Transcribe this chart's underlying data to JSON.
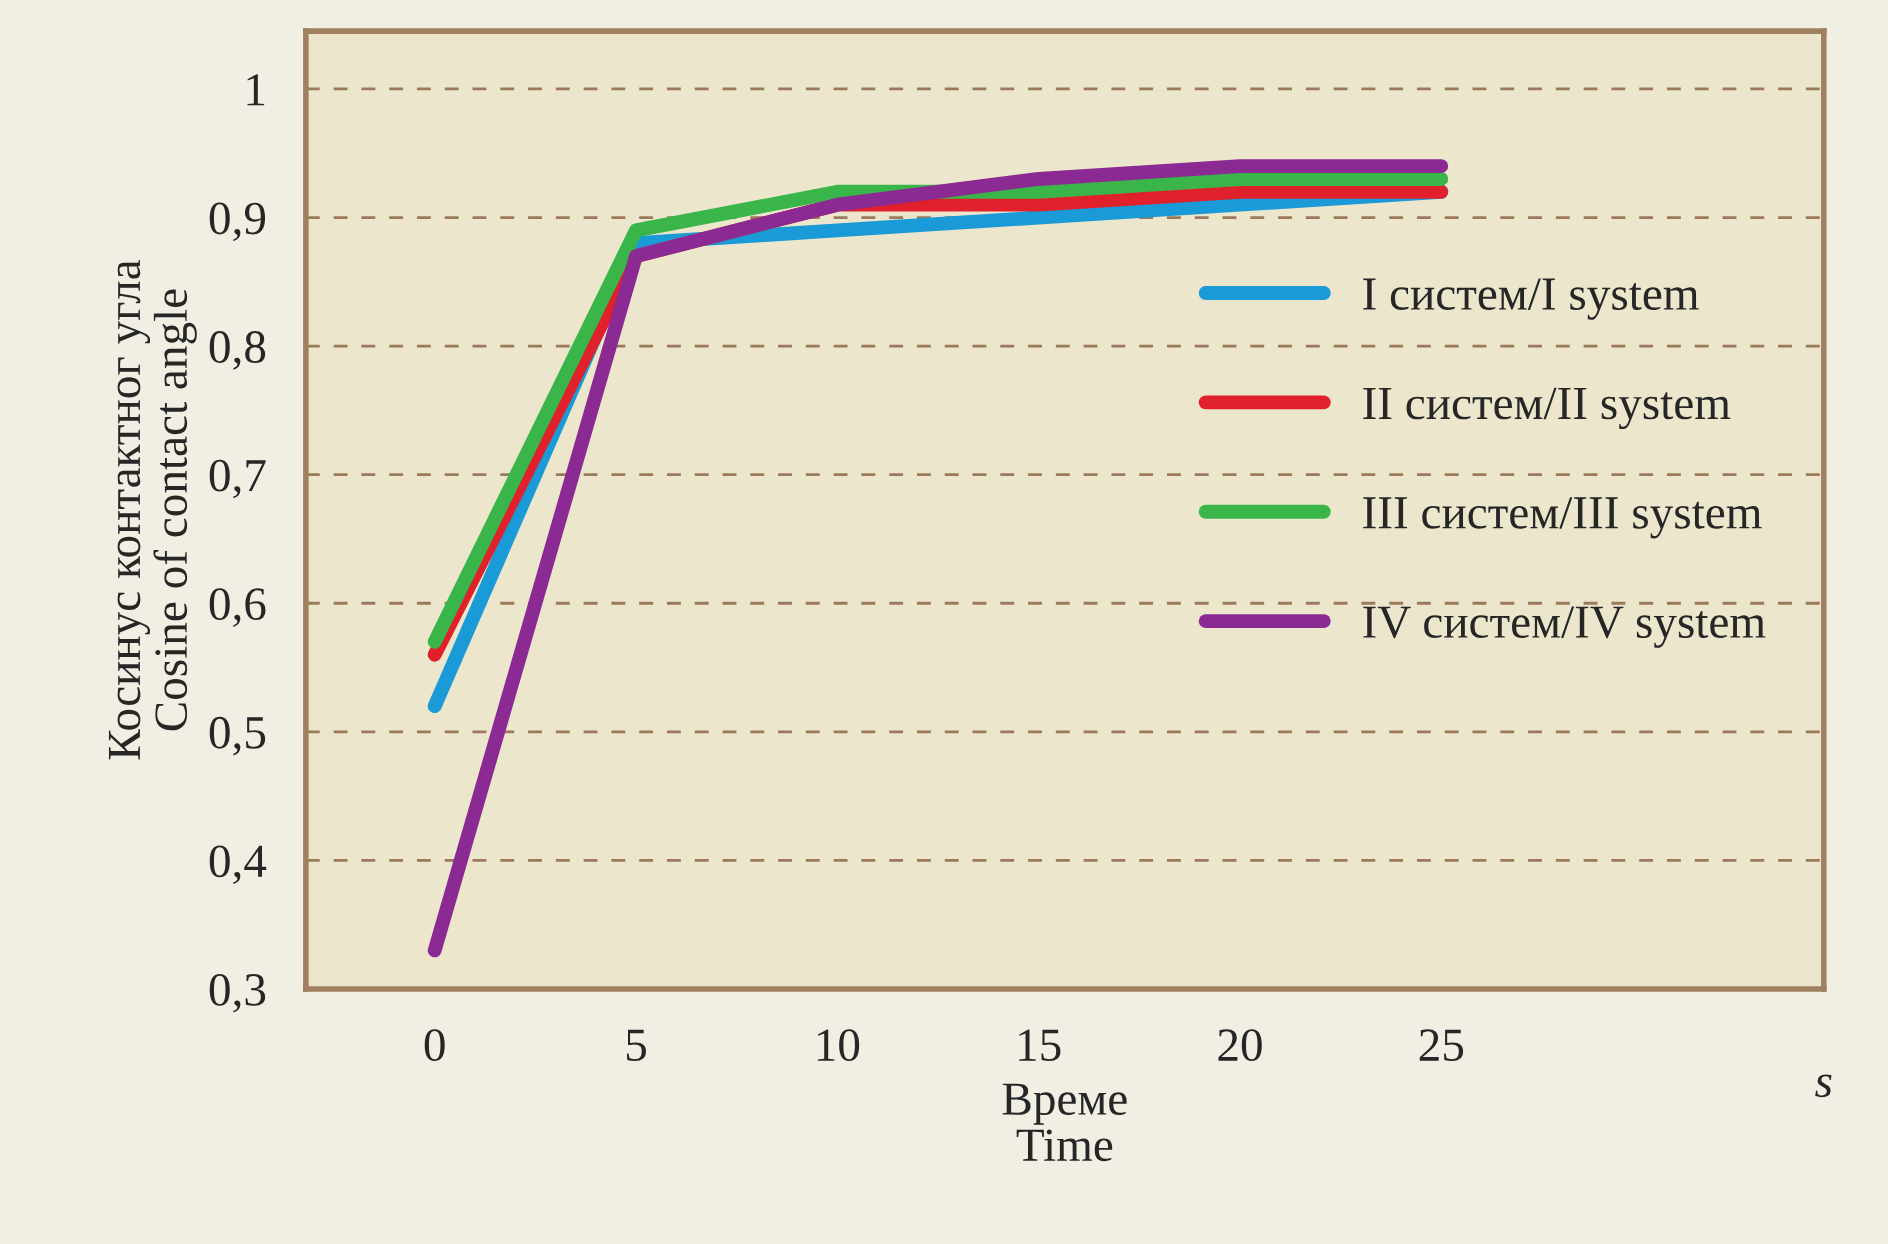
{
  "chart_data": {
    "type": "line",
    "xlabel": "Време\nTime",
    "ylabel": "Косинус контактног угла\nCosine of contact angle",
    "x": [
      0,
      5,
      10,
      15,
      20,
      25
    ],
    "series": [
      {
        "name": "I систем/I system",
        "color": "#1a9ad6",
        "values": [
          0.52,
          0.88,
          0.89,
          0.9,
          0.91,
          0.92
        ]
      },
      {
        "name": "II систем/II system",
        "color": "#e0202a",
        "values": [
          0.56,
          0.87,
          0.91,
          0.91,
          0.92,
          0.92
        ]
      },
      {
        "name": "III систем/III system",
        "color": "#3ab54a",
        "values": [
          0.57,
          0.89,
          0.92,
          0.92,
          0.93,
          0.93
        ]
      },
      {
        "name": "IV систем/IV system",
        "color": "#8b2a92",
        "values": [
          0.33,
          0.87,
          0.91,
          0.93,
          0.94,
          0.94
        ]
      }
    ],
    "xlim": [
      -3.2,
      34.5
    ],
    "xticks": [
      0,
      5,
      10,
      15,
      20,
      25
    ],
    "ylim": [
      0.3,
      1.045
    ],
    "yticks": [
      {
        "value": 0.3,
        "label": "0,3"
      },
      {
        "value": 0.4,
        "label": "0,4"
      },
      {
        "value": 0.5,
        "label": "0,5"
      },
      {
        "value": 0.6,
        "label": "0,6"
      },
      {
        "value": 0.7,
        "label": "0,7"
      },
      {
        "value": 0.8,
        "label": "0,8"
      },
      {
        "value": 0.9,
        "label": "0,9"
      },
      {
        "value": 1,
        "label": "1"
      }
    ],
    "annotations": [
      "s"
    ],
    "grid": "y",
    "legend": "right",
    "marker": "none",
    "line_style": "solid"
  }
}
